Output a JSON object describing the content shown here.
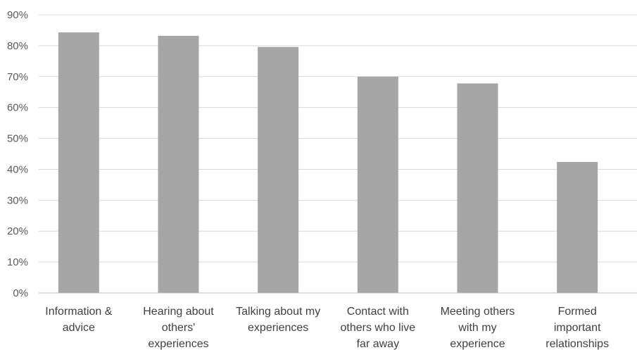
{
  "chart_data": {
    "type": "bar",
    "title": "",
    "xlabel": "",
    "ylabel": "",
    "ylim": [
      0,
      90
    ],
    "y_ticks": [
      "0%",
      "10%",
      "20%",
      "30%",
      "40%",
      "50%",
      "60%",
      "70%",
      "80%",
      "90%"
    ],
    "grid": true,
    "legend": "none",
    "bar_color": "#a6a6a6",
    "categories": [
      [
        "Information &",
        "advice"
      ],
      [
        "Hearing about",
        "others'",
        "experiences"
      ],
      [
        "Talking about my",
        "experiences"
      ],
      [
        "Contact with",
        "others who live",
        "far away"
      ],
      [
        "Meeting others",
        "with my",
        "experience"
      ],
      [
        "Formed",
        "important",
        "relationships"
      ]
    ],
    "values": [
      84.3,
      83.2,
      79.6,
      70.0,
      67.8,
      42.4
    ]
  }
}
